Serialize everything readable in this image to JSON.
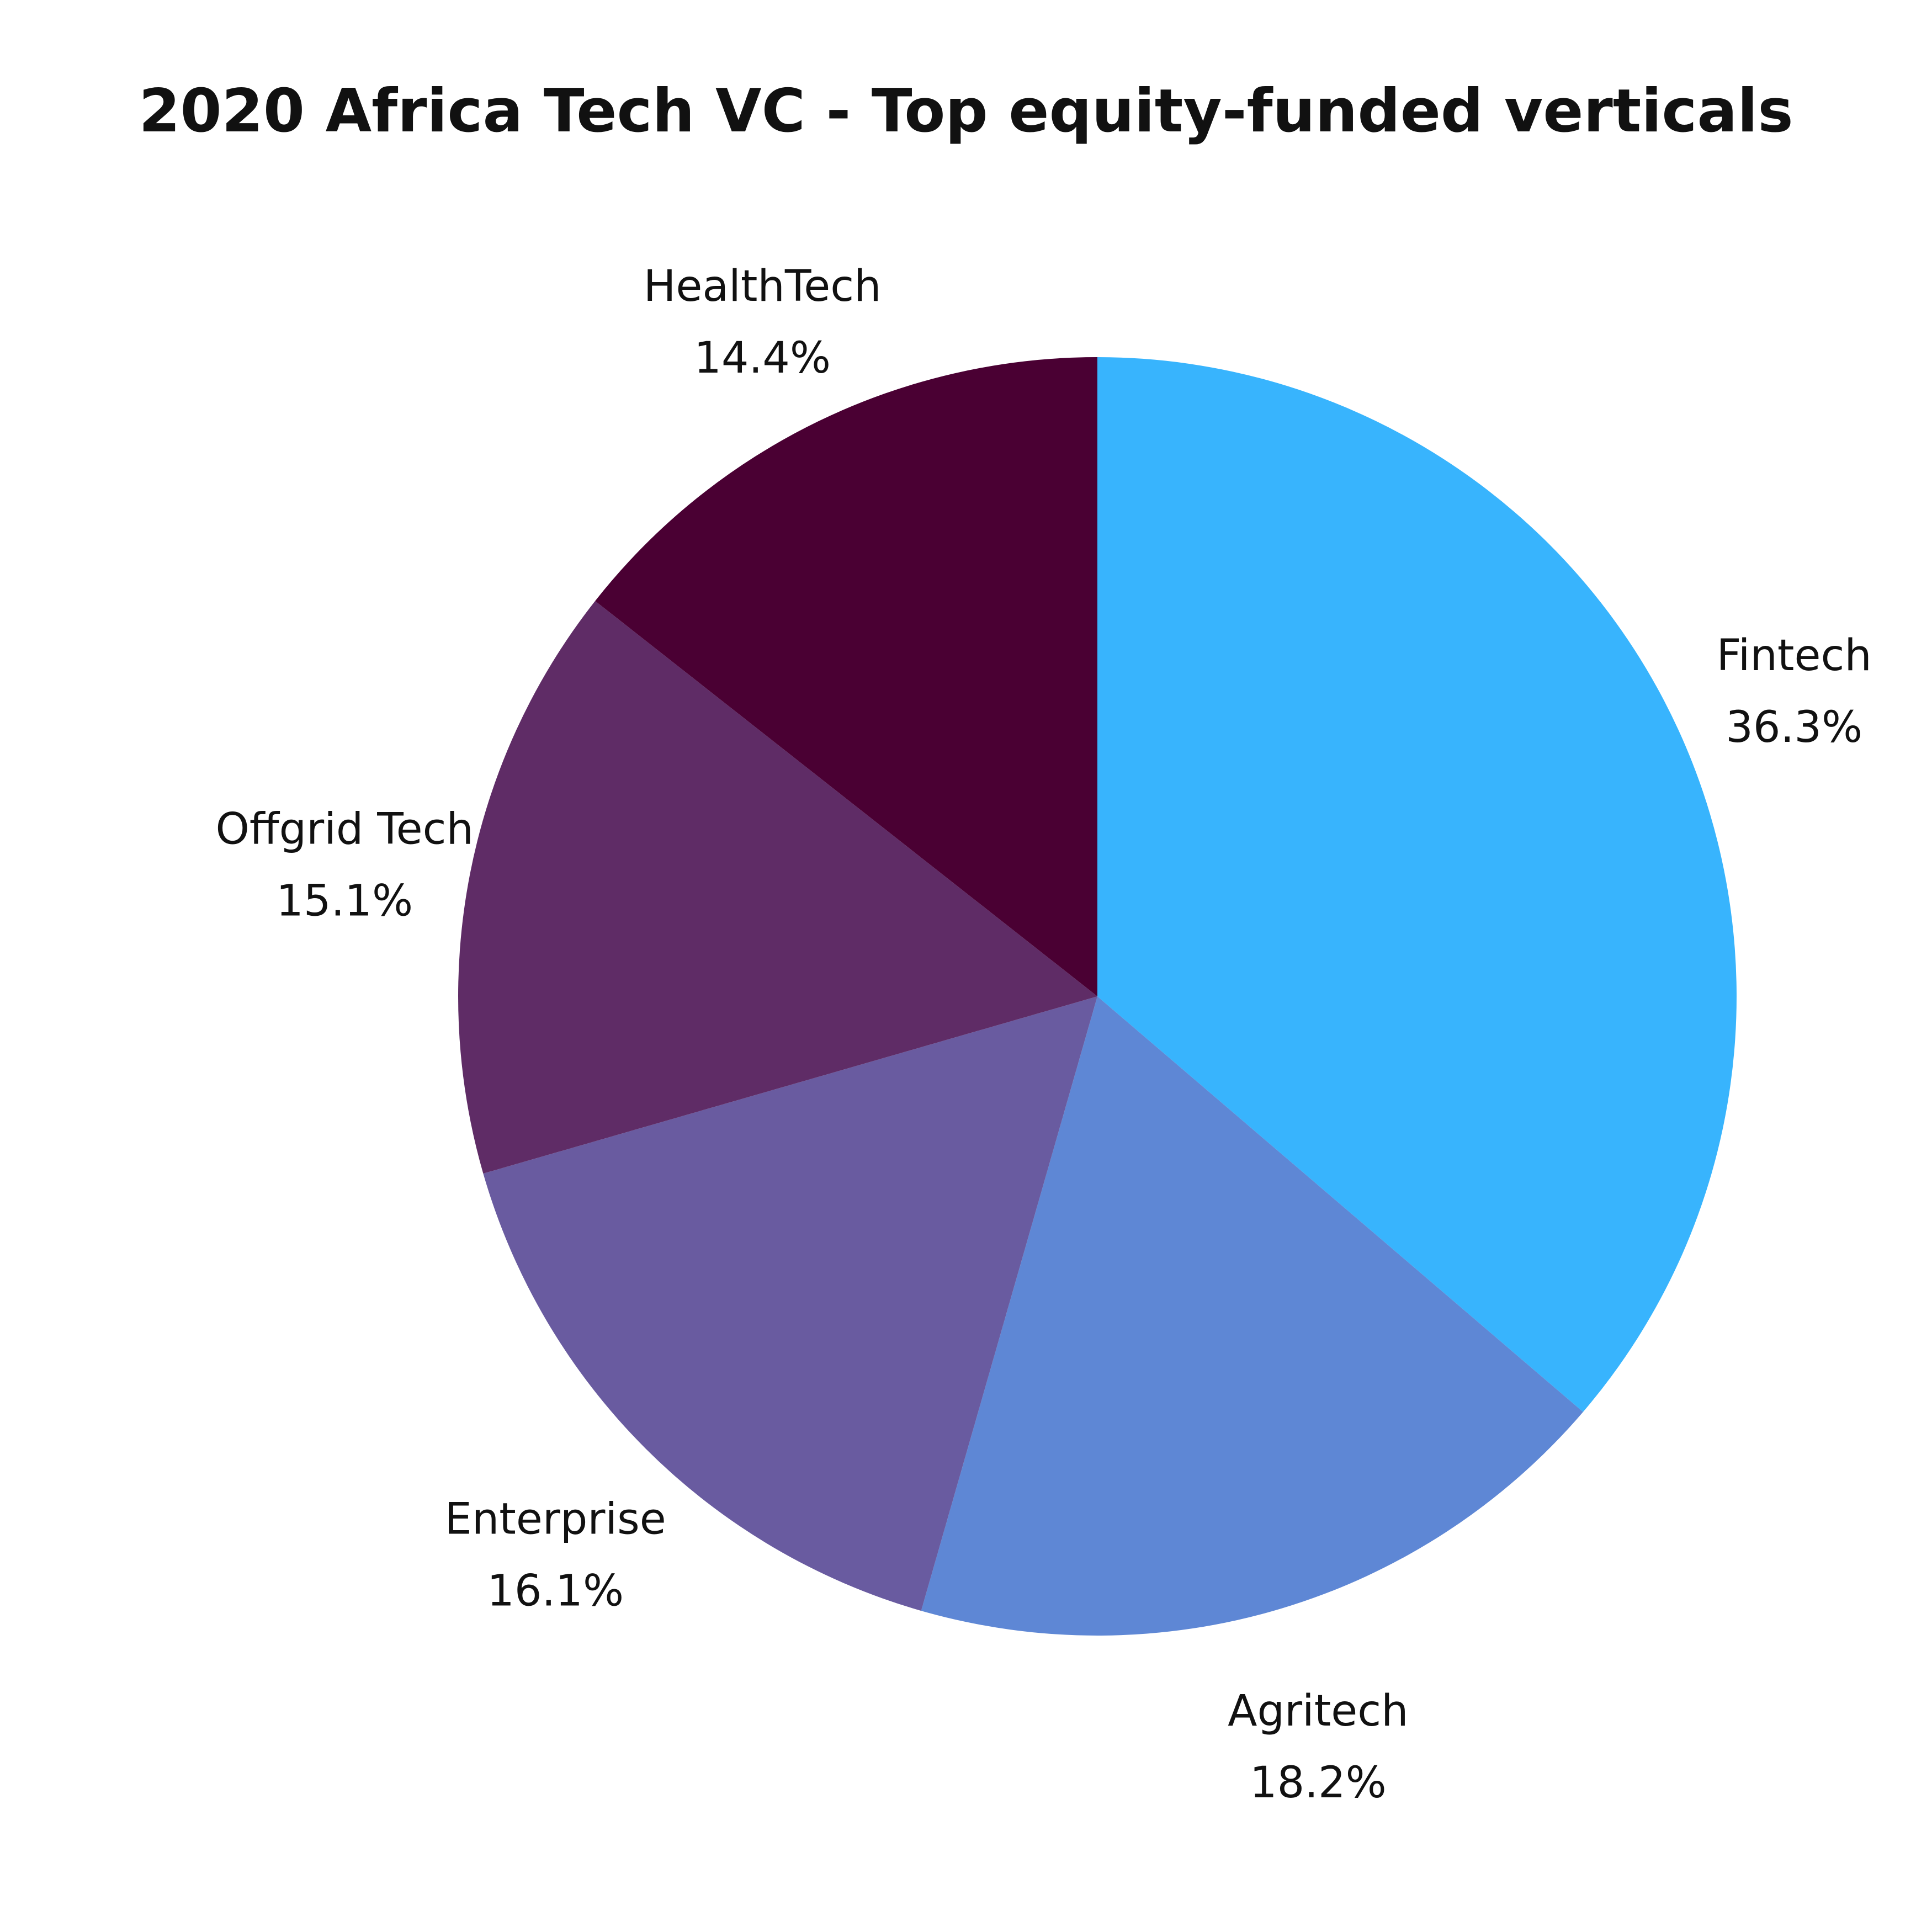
{
  "chart_data": {
    "type": "pie",
    "title": "2020 Africa Tech VC - Top equity-funded verticals",
    "start": "top",
    "direction": "clockwise",
    "slices": [
      {
        "label": "Fintech",
        "value": 36.3,
        "pct_label": "36.3%",
        "color": "#38B4FD"
      },
      {
        "label": "Agritech",
        "value": 18.2,
        "pct_label": "18.2%",
        "color": "#5E87D5"
      },
      {
        "label": "Enterprise",
        "value": 16.1,
        "pct_label": "16.1%",
        "color": "#695BA0"
      },
      {
        "label": "Offgrid Tech",
        "value": 15.1,
        "pct_label": "15.1%",
        "color": "#5F2C66"
      },
      {
        "label": "HealthTech",
        "value": 14.4,
        "pct_label": "14.4%",
        "color": "#4A0033"
      }
    ]
  }
}
